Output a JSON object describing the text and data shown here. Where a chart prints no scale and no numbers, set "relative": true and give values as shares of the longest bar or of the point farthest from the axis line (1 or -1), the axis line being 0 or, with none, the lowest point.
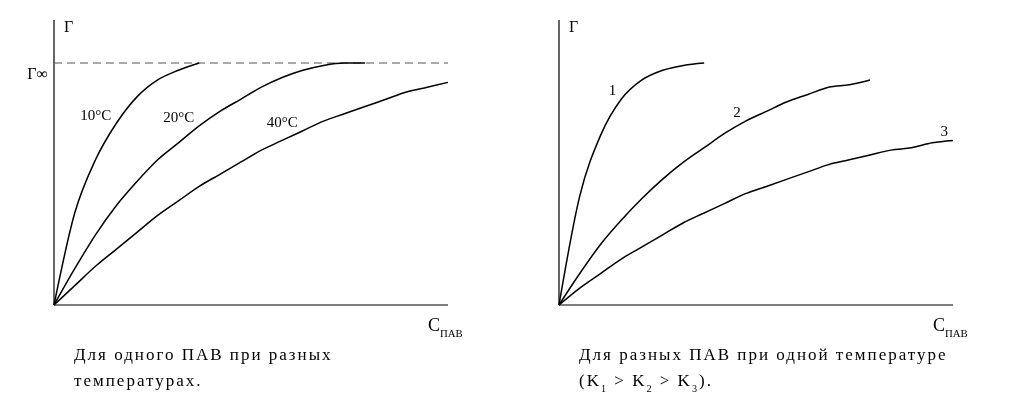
{
  "chart_data": [
    {
      "type": "line",
      "relative": true,
      "ylabel": "Γ",
      "xlabel": "C$_{ПАВ}$",
      "legend": false,
      "grid": false,
      "marker": "none",
      "line_style": "solid",
      "categories": [
        null,
        null,
        null,
        null,
        null,
        null,
        null,
        null,
        null,
        null,
        null,
        null,
        null,
        null,
        null,
        null,
        null,
        null,
        null,
        null
      ],
      "series": [
        {
          "name": "10°C",
          "color": "#000000",
          "values": [
            0,
            0.38,
            0.6,
            0.75,
            0.86,
            0.93,
            0.97,
            1.0,
            null,
            null,
            null,
            null,
            null,
            null,
            null,
            null,
            null,
            null,
            null,
            null
          ]
        },
        {
          "name": "20°C",
          "color": "#000000",
          "values": [
            0,
            0.15,
            0.29,
            0.41,
            0.51,
            0.6,
            0.67,
            0.74,
            0.8,
            0.85,
            0.9,
            0.94,
            0.97,
            0.99,
            1.0,
            1.0,
            null,
            null,
            null,
            null
          ]
        },
        {
          "name": "40°C",
          "color": "#000000",
          "values": [
            0,
            0.08,
            0.16,
            0.23,
            0.3,
            0.37,
            0.43,
            0.49,
            0.54,
            0.59,
            0.64,
            0.68,
            0.72,
            0.76,
            0.79,
            0.82,
            0.85,
            0.88,
            0.9,
            0.92
          ]
        }
      ],
      "ref_lines": [
        {
          "axis": "y",
          "value": 1,
          "label": "Γ∞",
          "color": "#555555",
          "line_style": "dashed"
        }
      ],
      "annotations": [
        "Для одного ПАВ при разных температурах."
      ]
    },
    {
      "type": "line",
      "relative": true,
      "ylabel": "Γ",
      "xlabel": "C$_{ПАВ}$",
      "legend": false,
      "grid": false,
      "marker": "none",
      "line_style": "solid",
      "categories": [
        null,
        null,
        null,
        null,
        null,
        null,
        null,
        null,
        null,
        null,
        null,
        null,
        null,
        null,
        null,
        null,
        null,
        null,
        null,
        null
      ],
      "series": [
        {
          "name": "1",
          "color": "#000000",
          "values": [
            0,
            0.45,
            0.7,
            0.85,
            0.93,
            0.97,
            0.99,
            1.0,
            null,
            null,
            null,
            null,
            null,
            null,
            null,
            null,
            null,
            null,
            null,
            null
          ]
        },
        {
          "name": "2",
          "color": "#000000",
          "values": [
            0,
            0.13,
            0.25,
            0.35,
            0.44,
            0.52,
            0.59,
            0.65,
            0.71,
            0.76,
            0.8,
            0.84,
            0.87,
            0.9,
            0.91,
            0.93,
            null,
            null,
            null,
            null
          ]
        },
        {
          "name": "3",
          "color": "#000000",
          "values": [
            0,
            0.07,
            0.13,
            0.19,
            0.24,
            0.29,
            0.34,
            0.38,
            0.42,
            0.46,
            0.49,
            0.52,
            0.55,
            0.58,
            0.6,
            0.62,
            0.64,
            0.65,
            0.67,
            0.68
          ]
        }
      ],
      "annotations": [
        "Для разных ПАВ при одной температуре (K$_{1}$ > K$_{2}$ > K$_{3}$)."
      ]
    }
  ]
}
